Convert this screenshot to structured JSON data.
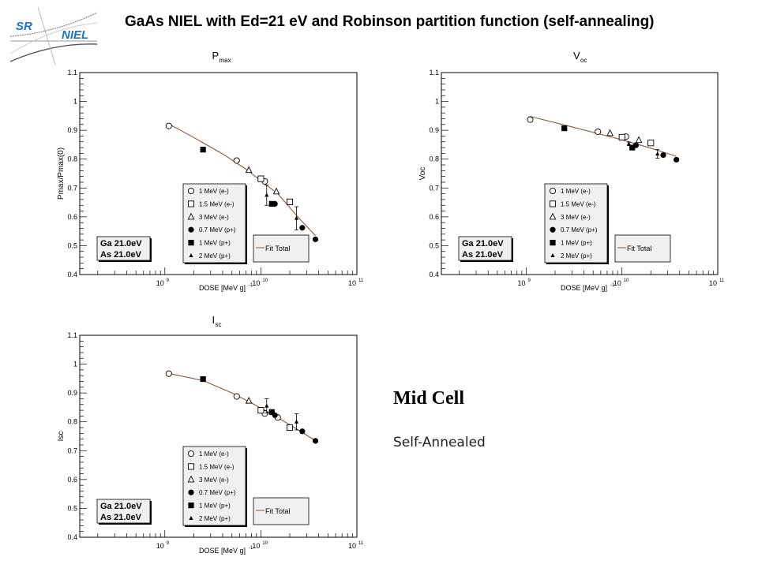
{
  "slide": {
    "title": "GaAs NIEL with Ed=21 eV and Robinson partition function (self-annealing)",
    "logo": {
      "line1": "SR",
      "line2": "NIEL"
    },
    "side_heading": "Mid Cell",
    "side_subheading": "Self-Annealed"
  },
  "colors": {
    "fit": "#8b5a3c",
    "logo_text": "#1a73c8",
    "legend_bg": "#f0f0f0"
  },
  "chart_data": [
    {
      "type": "scatter",
      "id": "pmax",
      "title": "P",
      "title_sub": "max",
      "ylabel": "Pmax/Pmax(0)",
      "xlabel": "DOSE [MeV g-1]",
      "xscale": "log",
      "xlim": [
        130000000.0,
        100000000000.0
      ],
      "ylim": [
        0.4,
        1.1
      ],
      "x_tick_labels": [
        "10^9",
        "10^10",
        "10^11"
      ],
      "y_tick_labels": [
        "0.4",
        "0.5",
        "0.6",
        "0.7",
        "0.8",
        "0.9",
        "1",
        "1.1"
      ],
      "annotation": [
        "Ga 21.0eV",
        "As 21.0eV"
      ],
      "fit_legend": "Fit Total",
      "fit": {
        "x": [
          1100000000.0,
          2000000000.0,
          4000000000.0,
          7000000000.0,
          10000000000.0,
          15000000000.0,
          25000000000.0,
          37000000000.0
        ],
        "y": [
          0.922,
          0.875,
          0.818,
          0.765,
          0.725,
          0.68,
          0.595,
          0.535
        ]
      },
      "series": [
        {
          "name": "1 MeV (e-)",
          "marker": "open-circle",
          "points": [
            [
              1100000000.0,
              0.915
            ],
            [
              5600000000.0,
              0.795
            ],
            [
              11000000000.0,
              0.723
            ]
          ]
        },
        {
          "name": "1.5 MeV (e-)",
          "marker": "open-square",
          "points": [
            [
              10000000000.0,
              0.732
            ],
            [
              20000000000.0,
              0.652
            ]
          ]
        },
        {
          "name": "3 MeV (e-)",
          "marker": "open-triangle",
          "points": [
            [
              7500000000.0,
              0.762
            ],
            [
              14500000000.0,
              0.688
            ]
          ]
        },
        {
          "name": "0.7 MeV (p+)",
          "marker": "filled-circle",
          "points": [
            [
              14000000000.0,
              0.645
            ],
            [
              27000000000.0,
              0.562
            ],
            [
              37000000000.0,
              0.522
            ]
          ]
        },
        {
          "name": "1 MeV (p+)",
          "marker": "filled-square",
          "points": [
            [
              2500000000.0,
              0.833
            ],
            [
              13000000000.0,
              0.645
            ]
          ]
        },
        {
          "name": "2 MeV (p+)",
          "marker": "filled-triangle",
          "points": [
            [
              11500000000.0,
              0.675,
              0.035
            ],
            [
              23500000000.0,
              0.595,
              0.04
            ]
          ]
        }
      ]
    },
    {
      "type": "scatter",
      "id": "voc",
      "title": "V",
      "title_sub": "oc",
      "ylabel": "Voc",
      "xlabel": "DOSE [MeV g-1]",
      "xscale": "log",
      "xlim": [
        130000000.0,
        100000000000.0
      ],
      "ylim": [
        0.4,
        1.1
      ],
      "x_tick_labels": [
        "10^9",
        "10^10",
        "10^11"
      ],
      "y_tick_labels": [
        "0.4",
        "0.5",
        "0.6",
        "0.7",
        "0.8",
        "0.9",
        "1",
        "1.1"
      ],
      "annotation": [
        "Ga 21.0eV",
        "As 21.0eV"
      ],
      "fit_legend": "Fit Total",
      "fit": {
        "x": [
          1100000000.0,
          3000000000.0,
          10000000000.0,
          20000000000.0,
          37000000000.0
        ],
        "y": [
          0.948,
          0.912,
          0.867,
          0.838,
          0.81
        ]
      },
      "series": [
        {
          "name": "1 MeV (e-)",
          "marker": "open-circle",
          "points": [
            [
              1100000000.0,
              0.937
            ],
            [
              5600000000.0,
              0.895
            ],
            [
              11000000000.0,
              0.878
            ]
          ]
        },
        {
          "name": "1.5 MeV (e-)",
          "marker": "open-square",
          "points": [
            [
              10000000000.0,
              0.876
            ],
            [
              20000000000.0,
              0.856
            ]
          ]
        },
        {
          "name": "3 MeV (e-)",
          "marker": "open-triangle",
          "points": [
            [
              7500000000.0,
              0.89
            ],
            [
              15000000000.0,
              0.866
            ]
          ]
        },
        {
          "name": "0.7 MeV (p+)",
          "marker": "filled-circle",
          "points": [
            [
              14000000000.0,
              0.848
            ],
            [
              27000000000.0,
              0.814
            ],
            [
              37000000000.0,
              0.798
            ]
          ]
        },
        {
          "name": "1 MeV (p+)",
          "marker": "filled-square",
          "points": [
            [
              2500000000.0,
              0.907
            ],
            [
              12800000000.0,
              0.84
            ]
          ]
        },
        {
          "name": "2 MeV (p+)",
          "marker": "filled-triangle",
          "points": [
            [
              11800000000.0,
              0.853,
              0.006
            ],
            [
              23500000000.0,
              0.818,
              0.015
            ]
          ]
        }
      ]
    },
    {
      "type": "scatter",
      "id": "isc",
      "title": "I",
      "title_sub": "sc",
      "ylabel": "Isc",
      "xlabel": "DOSE [MeV g-1]",
      "xscale": "log",
      "xlim": [
        130000000.0,
        100000000000.0
      ],
      "ylim": [
        0.4,
        1.1
      ],
      "x_tick_labels": [
        "10^9",
        "10^10",
        "10^11"
      ],
      "y_tick_labels": [
        "0.4",
        "0.5",
        "0.6",
        "0.7",
        "0.8",
        "0.9",
        "1",
        "1.1"
      ],
      "annotation": [
        "Ga 21.0eV",
        "As 21.0eV"
      ],
      "fit_legend": "Fit Total",
      "fit": {
        "x": [
          1100000000.0,
          2500000000.0,
          5000000000.0,
          8000000000.0,
          12000000000.0,
          20000000000.0,
          37000000000.0
        ],
        "y": [
          0.968,
          0.943,
          0.9,
          0.865,
          0.833,
          0.79,
          0.735
        ]
      },
      "series": [
        {
          "name": "1 MeV (e-)",
          "marker": "open-circle",
          "points": [
            [
              1100000000.0,
              0.967
            ],
            [
              5600000000.0,
              0.888
            ],
            [
              11000000000.0,
              0.829
            ],
            [
              15000000000.0,
              0.815
            ]
          ]
        },
        {
          "name": "1.5 MeV (e-)",
          "marker": "open-square",
          "points": [
            [
              10000000000.0,
              0.84
            ],
            [
              20000000000.0,
              0.78
            ]
          ]
        },
        {
          "name": "3 MeV (e-)",
          "marker": "open-triangle",
          "points": [
            [
              7500000000.0,
              0.873
            ]
          ]
        },
        {
          "name": "0.7 MeV (p+)",
          "marker": "filled-circle",
          "points": [
            [
              14000000000.0,
              0.823
            ],
            [
              27000000000.0,
              0.767
            ],
            [
              37000000000.0,
              0.734
            ]
          ]
        },
        {
          "name": "1 MeV (p+)",
          "marker": "filled-square",
          "points": [
            [
              2500000000.0,
              0.948
            ],
            [
              13000000000.0,
              0.834
            ]
          ]
        },
        {
          "name": "2 MeV (p+)",
          "marker": "filled-triangle",
          "points": [
            [
              11500000000.0,
              0.855,
              0.025
            ],
            [
              23500000000.0,
              0.8,
              0.028
            ]
          ]
        }
      ]
    }
  ]
}
